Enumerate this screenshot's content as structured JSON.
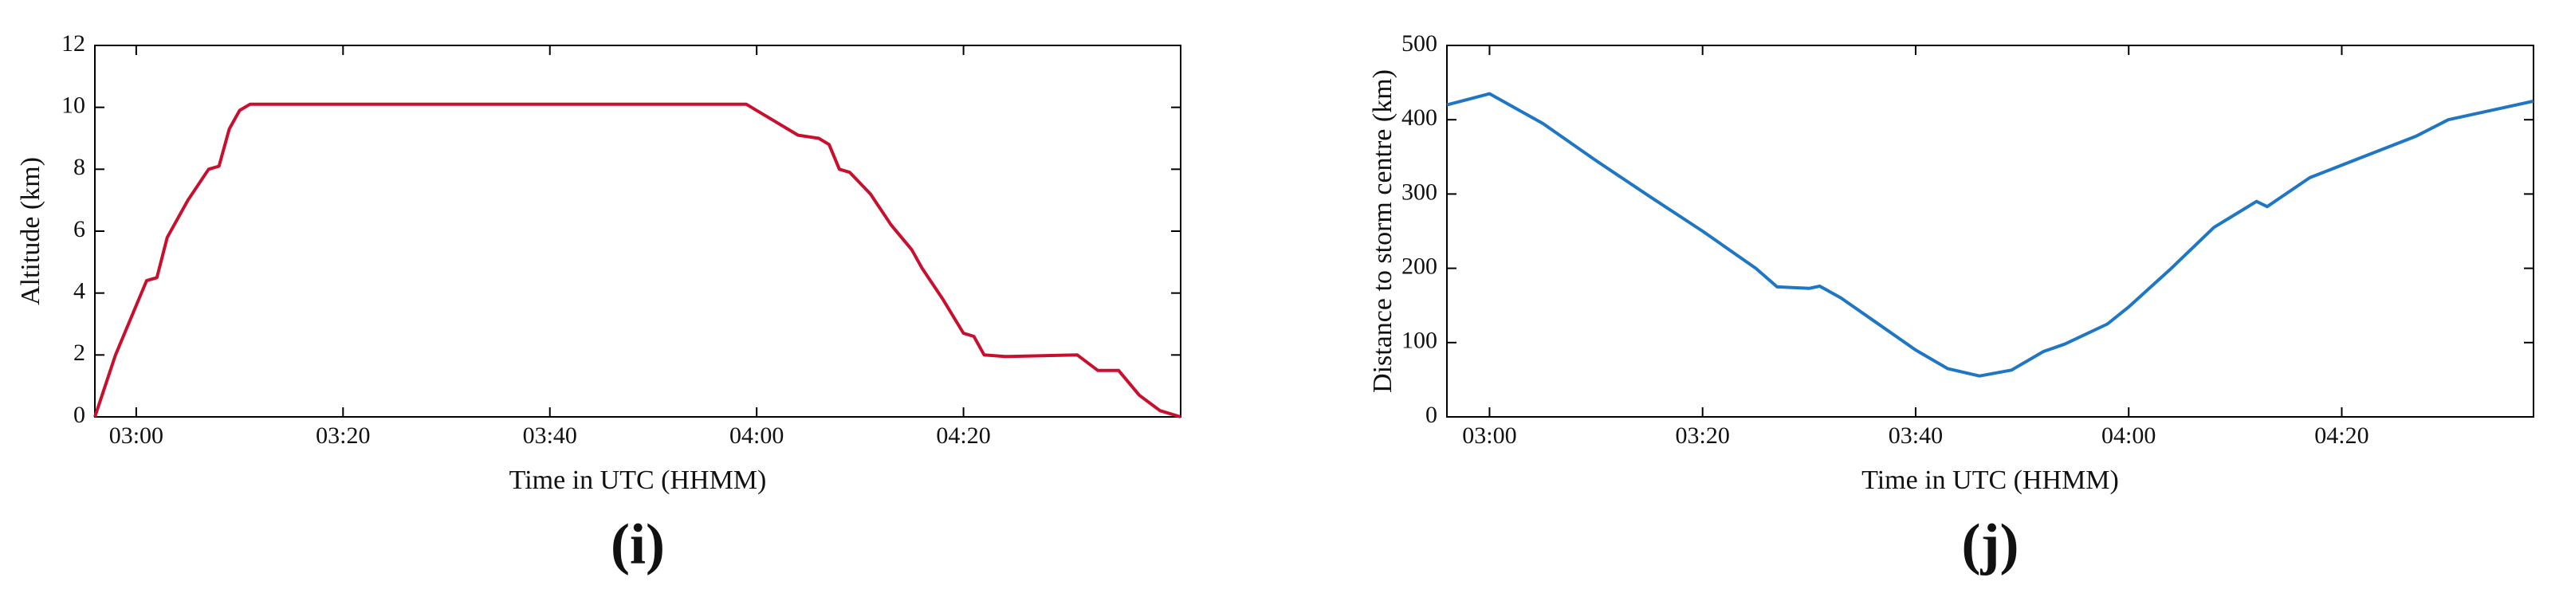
{
  "chart_data": [
    {
      "type": "line",
      "panel_label": "(i)",
      "xlabel": "Time in UTC (HHMM)",
      "ylabel": "Altitude (km)",
      "color": "#c8102e",
      "x": [
        "02:56",
        "02:58",
        "03:01",
        "03:02",
        "03:03",
        "03:05",
        "03:07",
        "03:08",
        "03:09",
        "03:10",
        "03:11",
        "03:30",
        "03:50",
        "03:59",
        "04:01",
        "04:04",
        "04:06",
        "04:07",
        "04:08",
        "04:09",
        "04:11",
        "04:13",
        "04:15",
        "04:16",
        "04:18",
        "04:20",
        "04:21",
        "04:22",
        "04:24",
        "04:31",
        "04:33",
        "04:35",
        "04:37",
        "04:39",
        "04:41"
      ],
      "values": [
        0,
        2.0,
        4.4,
        4.5,
        5.8,
        7.0,
        8.0,
        8.1,
        9.3,
        9.9,
        10.1,
        10.1,
        10.1,
        10.1,
        9.7,
        9.1,
        9.0,
        8.8,
        8.0,
        7.9,
        7.2,
        6.2,
        5.4,
        4.8,
        3.8,
        2.7,
        2.6,
        2.0,
        1.95,
        2.0,
        1.5,
        1.5,
        0.7,
        0.2,
        0
      ],
      "xlim": [
        "02:56",
        "04:41"
      ],
      "xticks": [
        "03:00",
        "03:20",
        "03:40",
        "04:00",
        "04:20"
      ],
      "ylim": [
        0,
        12
      ],
      "yticks": [
        0,
        2,
        4,
        6,
        8,
        10,
        12
      ]
    },
    {
      "type": "line",
      "panel_label": "(j)",
      "xlabel": "Time in UTC (HHMM)",
      "ylabel": "Distance to storm centre (km)",
      "color": "#1f77c4",
      "x": [
        "02:56",
        "03:00",
        "03:05",
        "03:10",
        "03:15",
        "03:20",
        "03:25",
        "03:27",
        "03:30",
        "03:31",
        "03:33",
        "03:36",
        "03:40",
        "03:43",
        "03:46",
        "03:49",
        "03:52",
        "03:54",
        "03:58",
        "04:00",
        "04:04",
        "04:08",
        "04:12",
        "04:13",
        "04:17",
        "04:22",
        "04:27",
        "04:30",
        "04:38"
      ],
      "values": [
        420,
        435,
        395,
        345,
        297,
        250,
        200,
        175,
        173,
        176,
        160,
        130,
        90,
        65,
        55,
        63,
        88,
        98,
        125,
        148,
        200,
        255,
        290,
        283,
        322,
        350,
        378,
        400,
        425
      ],
      "xlim": [
        "02:56",
        "04:38"
      ],
      "xticks": [
        "03:00",
        "03:20",
        "03:40",
        "04:00",
        "04:20"
      ],
      "ylim": [
        0,
        500
      ],
      "yticks": [
        0,
        100,
        200,
        300,
        400,
        500
      ]
    }
  ]
}
